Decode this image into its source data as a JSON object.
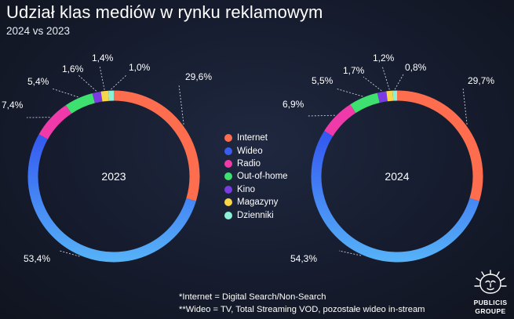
{
  "header": {
    "title": "Udział klas mediów w rynku reklamowym",
    "subtitle": "2024 vs 2023"
  },
  "chart_data": [
    {
      "type": "pie",
      "center_label": "2023",
      "categories": [
        "Internet",
        "Wideo",
        "Radio",
        "Out-of-home",
        "Kino",
        "Magazyny",
        "Dzienniki"
      ],
      "values": [
        29.6,
        53.4,
        7.4,
        5.4,
        1.6,
        1.4,
        1.0
      ],
      "data_labels": [
        "29,6%",
        "53,4%",
        "7,4%",
        "5,4%",
        "1,6%",
        "1,4%",
        "1,0%"
      ],
      "colors": [
        "#fe6e4e",
        "#3a5df0",
        "#f03aaa",
        "#3ee070",
        "#7a3ce0",
        "#f8d64a",
        "#8cf0d6"
      ]
    },
    {
      "type": "pie",
      "center_label": "2024",
      "categories": [
        "Internet",
        "Wideo",
        "Radio",
        "Out-of-home",
        "Kino",
        "Magazyny",
        "Dzienniki"
      ],
      "values": [
        29.7,
        54.3,
        6.9,
        5.5,
        1.7,
        1.2,
        0.8
      ],
      "data_labels": [
        "29,7%",
        "54,3%",
        "6,9%",
        "5,5%",
        "1,7%",
        "1,2%",
        "0,8%"
      ],
      "colors": [
        "#fe6e4e",
        "#3a5df0",
        "#f03aaa",
        "#3ee070",
        "#7a3ce0",
        "#f8d64a",
        "#8cf0d6"
      ]
    }
  ],
  "legend": {
    "items": [
      {
        "label": "Internet",
        "color": "#fe6e4e"
      },
      {
        "label": "Wideo",
        "color": "#3a5df0"
      },
      {
        "label": "Radio",
        "color": "#f03aaa"
      },
      {
        "label": "Out-of-home",
        "color": "#3ee070"
      },
      {
        "label": "Kino",
        "color": "#7a3ce0"
      },
      {
        "label": "Magazyny",
        "color": "#f8d64a"
      },
      {
        "label": "Dzienniki",
        "color": "#8cf0d6"
      }
    ]
  },
  "footnotes": {
    "line1": "*Internet = Digital Search/Non-Search",
    "line2": "**Wideo = TV, Total Streaming VOD, pozostałe wideo in-stream"
  },
  "logo": {
    "line1": "PUBLICIS",
    "line2": "GROUPE"
  }
}
